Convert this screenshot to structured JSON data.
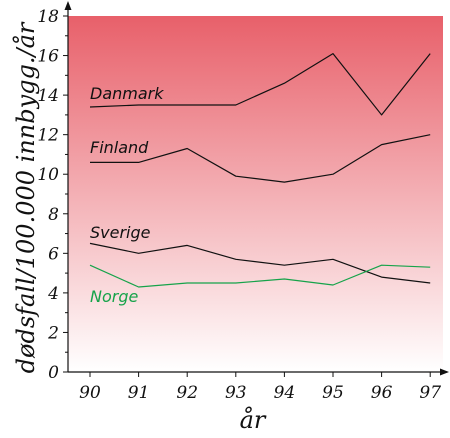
{
  "chart_data": {
    "type": "line",
    "title": "",
    "xlabel": "år",
    "ylabel": "dødsfall/100.000 innbygg./år",
    "x": [
      "90",
      "91",
      "92",
      "93",
      "94",
      "95",
      "96",
      "97"
    ],
    "ylim": [
      0,
      18
    ],
    "yticks": [
      "0",
      "2",
      "4",
      "6",
      "8",
      "10",
      "12",
      "14",
      "16",
      "18"
    ],
    "background_gradient": {
      "top": "#e8606a",
      "bottom": "#ffffff"
    },
    "grid": false,
    "series": [
      {
        "name": "Danmark",
        "color": "#111111",
        "values": [
          13.4,
          13.5,
          13.5,
          13.5,
          14.6,
          16.1,
          13.0,
          16.1
        ]
      },
      {
        "name": "Finland",
        "color": "#111111",
        "values": [
          10.6,
          10.6,
          11.3,
          9.9,
          9.6,
          10.0,
          11.5,
          12.0
        ]
      },
      {
        "name": "Sverige",
        "color": "#111111",
        "values": [
          6.5,
          6.0,
          6.4,
          5.7,
          5.4,
          5.7,
          4.8,
          4.5
        ]
      },
      {
        "name": "Norge",
        "color": "#16a34a",
        "values": [
          5.4,
          4.3,
          4.5,
          4.5,
          4.7,
          4.4,
          5.4,
          5.3
        ]
      }
    ]
  }
}
